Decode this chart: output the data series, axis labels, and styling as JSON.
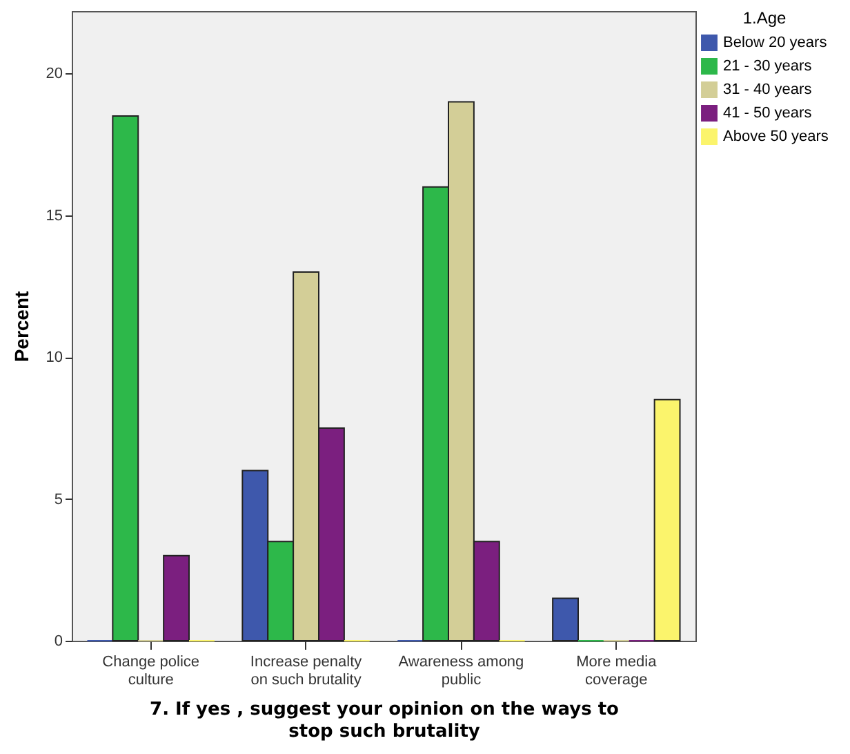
{
  "chart_data": {
    "type": "bar",
    "xlabel": "7. If yes , suggest your opinion on the ways to stop such brutality",
    "ylabel": "Percent",
    "legend_title": "1.Age",
    "categories": [
      "Change police culture",
      "Increase penalty on such brutality",
      "Awareness among public",
      "More media coverage"
    ],
    "series": [
      {
        "name": "Below 20 years",
        "color": "#3e58ac",
        "values": [
          0,
          6,
          0,
          1.5
        ]
      },
      {
        "name": "21 - 30 years",
        "color": "#2db84a",
        "values": [
          18.5,
          3.5,
          16,
          0
        ]
      },
      {
        "name": "31 - 40 years",
        "color": "#d3ce97",
        "values": [
          0,
          13,
          19,
          0
        ]
      },
      {
        "name": "41 - 50 years",
        "color": "#7b1f7f",
        "values": [
          3,
          7.5,
          3.5,
          0
        ]
      },
      {
        "name": "Above 50 years",
        "color": "#fbf46c",
        "values": [
          0,
          0,
          0,
          8.5
        ]
      }
    ],
    "ylim": [
      0,
      22.2
    ],
    "yticks": [
      0,
      5,
      10,
      15,
      20
    ],
    "grid": false,
    "legend": "top right"
  }
}
